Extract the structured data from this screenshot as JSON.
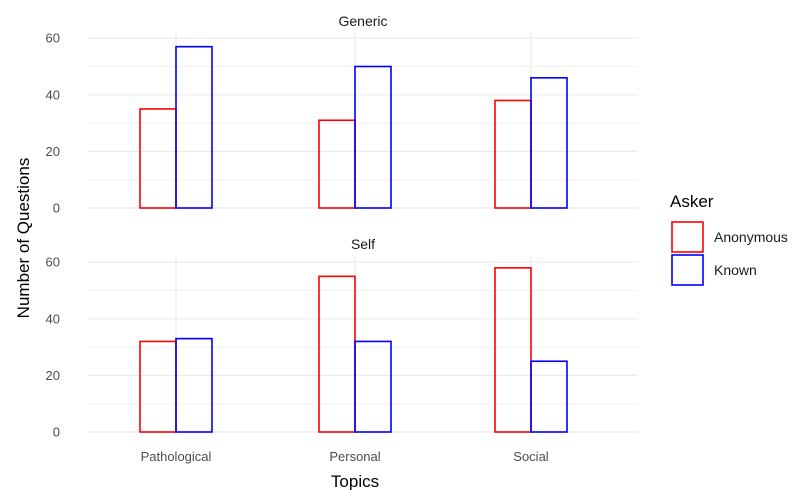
{
  "chart_data": {
    "type": "bar",
    "categories": [
      "Pathological",
      "Personal",
      "Social"
    ],
    "xlabel": "Topics",
    "ylabel": "Number of Questions",
    "ylim": [
      0,
      62
    ],
    "yticks": [
      0,
      20,
      40,
      60
    ],
    "grid": true,
    "legend": {
      "title": "Asker",
      "position": "right",
      "entries": [
        "Anonymous",
        "Known"
      ]
    },
    "colors": {
      "Anonymous": "#ff0000",
      "Known": "#0000ff"
    },
    "panels": [
      {
        "title": "Generic",
        "series": [
          {
            "name": "Anonymous",
            "values": [
              35,
              31,
              38
            ]
          },
          {
            "name": "Known",
            "values": [
              57,
              50,
              46
            ]
          }
        ]
      },
      {
        "title": "Self",
        "series": [
          {
            "name": "Anonymous",
            "values": [
              32,
              55,
              58
            ]
          },
          {
            "name": "Known",
            "values": [
              33,
              32,
              25
            ]
          }
        ]
      }
    ]
  }
}
